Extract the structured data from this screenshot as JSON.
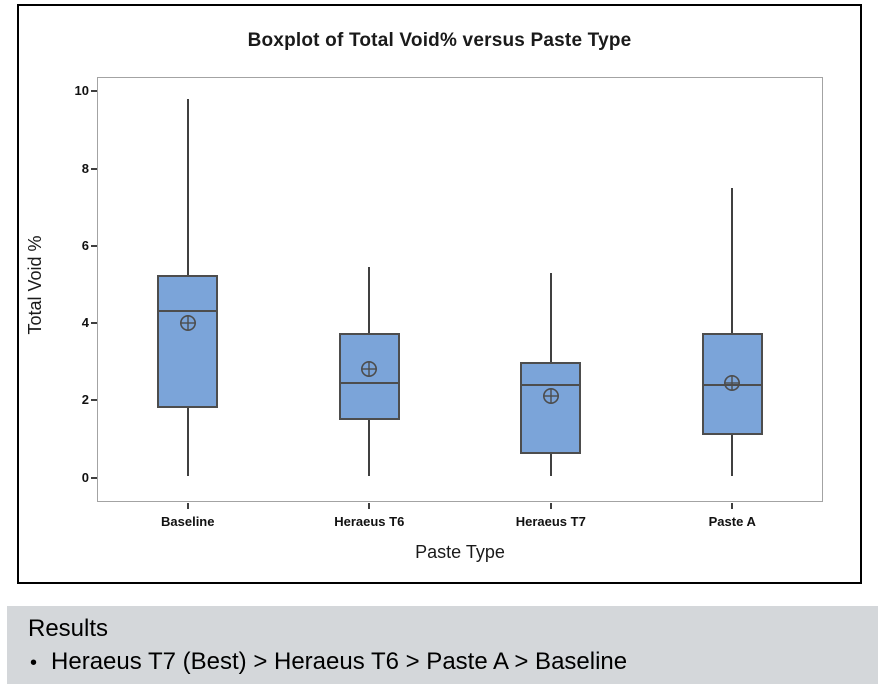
{
  "chart_data": {
    "type": "boxplot",
    "title": "Boxplot of Total Void% versus Paste Type",
    "xlabel": "Paste Type",
    "ylabel": "Total Void %",
    "ylim": [
      0,
      10
    ],
    "yticks": [
      0,
      2,
      4,
      6,
      8,
      10
    ],
    "grid": false,
    "legend": "none",
    "categories": [
      "Baseline",
      "Heraeus T6",
      "Heraeus T7",
      "Paste A"
    ],
    "series": [
      {
        "name": "Baseline",
        "whisker_low": 0.05,
        "q1": 1.8,
        "median": 4.3,
        "q3": 5.25,
        "whisker_high": 9.8,
        "mean": 4.0
      },
      {
        "name": "Heraeus T6",
        "whisker_low": 0.05,
        "q1": 1.5,
        "median": 2.45,
        "q3": 3.75,
        "whisker_high": 5.45,
        "mean": 2.8
      },
      {
        "name": "Heraeus T7",
        "whisker_low": 0.05,
        "q1": 0.6,
        "median": 2.4,
        "q3": 3.0,
        "whisker_high": 5.3,
        "mean": 2.1
      },
      {
        "name": "Paste A",
        "whisker_low": 0.05,
        "q1": 1.1,
        "median": 2.4,
        "q3": 3.75,
        "whisker_high": 7.5,
        "mean": 2.45
      }
    ],
    "colors": {
      "box_fill": "#7ba4d9",
      "box_border": "#4d4d4d",
      "whisker": "#404040",
      "mean_symbol": "#4d4d4d",
      "frame": "#a3a3a3"
    }
  },
  "results": {
    "heading": "Results",
    "bullet": "•",
    "bullet_text": "Heraeus T7 (Best) > Heraeus T6 > Paste A > Baseline",
    "background": "#d4d7da"
  }
}
